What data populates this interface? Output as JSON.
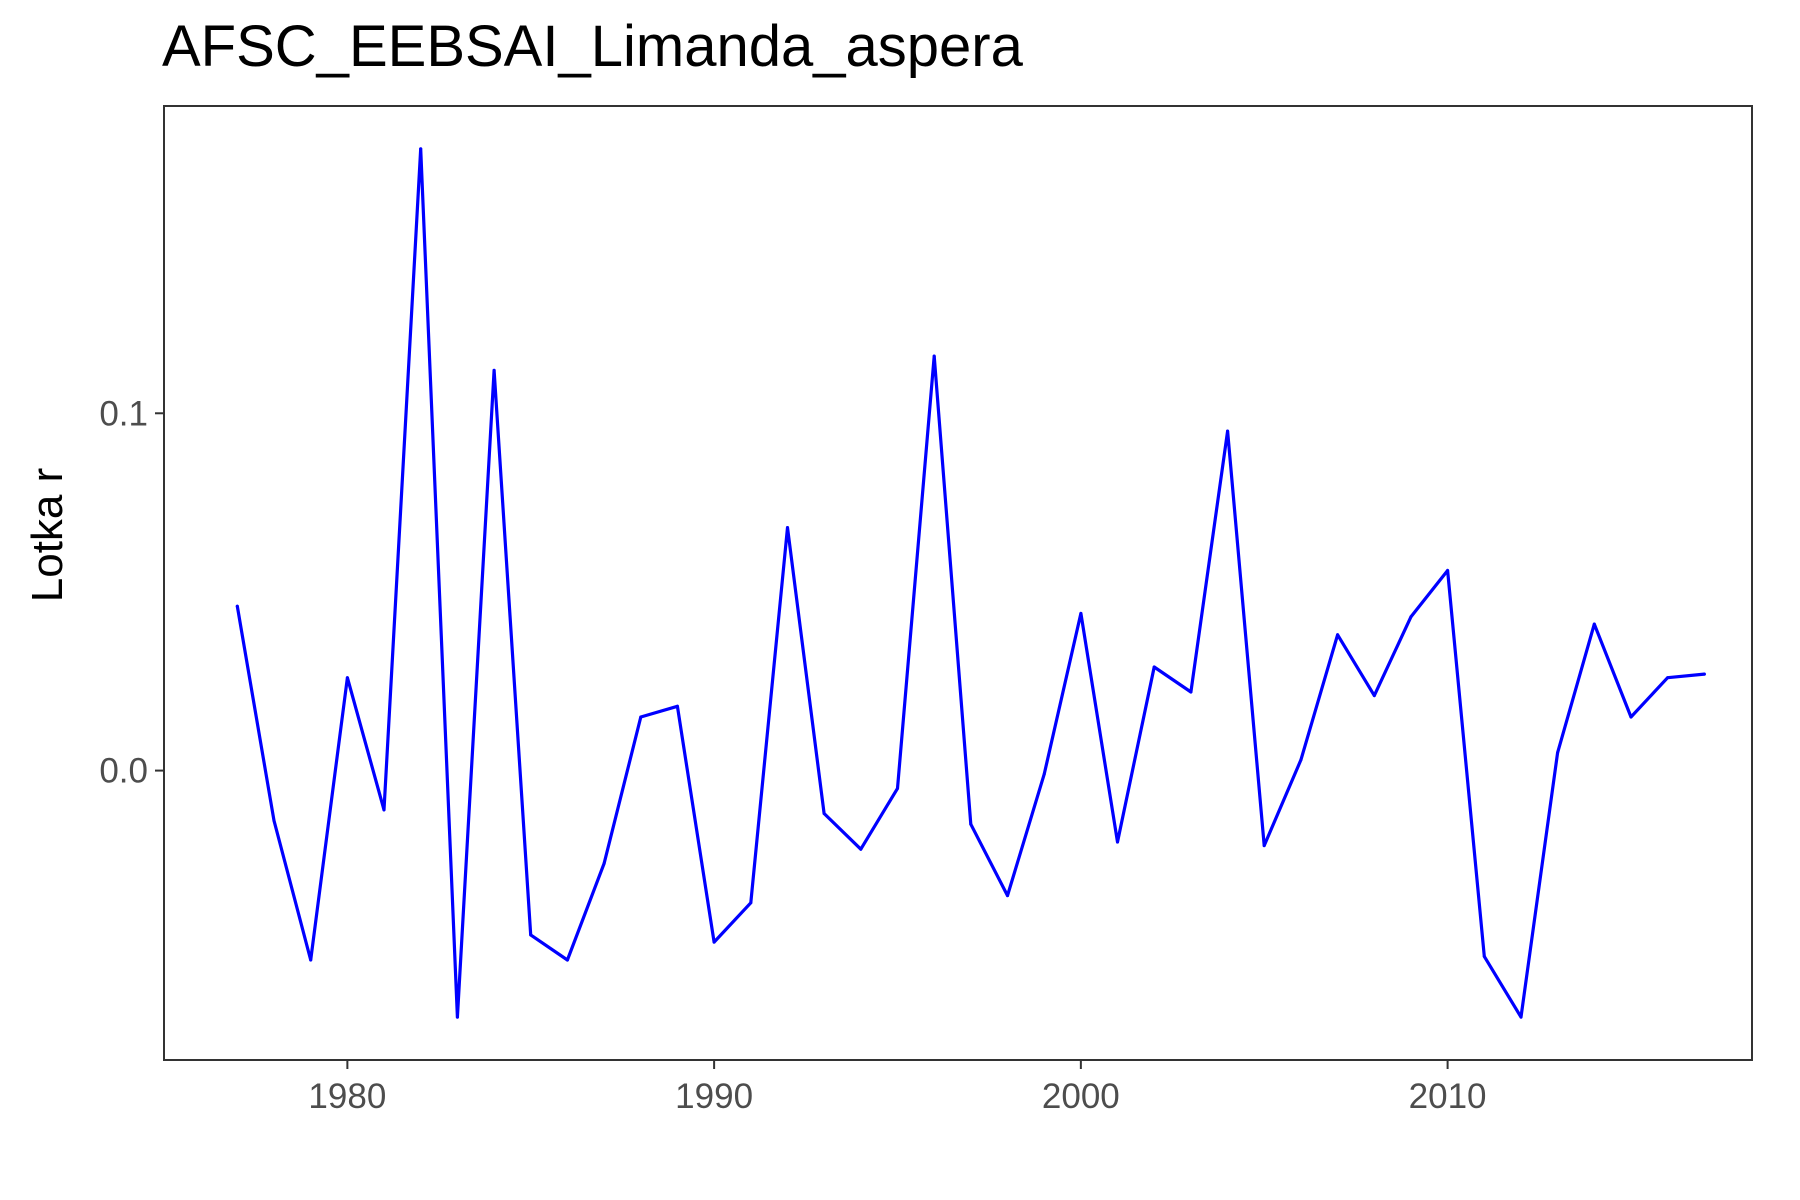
{
  "chart_data": {
    "type": "line",
    "title": "AFSC_EEBSAI_Limanda_aspera",
    "xlabel": "",
    "ylabel": "Lotka r",
    "xlim": [
      1975.0,
      2018.3
    ],
    "ylim": [
      -0.081,
      0.186
    ],
    "x_ticks": [
      1980,
      1990,
      2000,
      2010
    ],
    "x_tick_labels": [
      "1980",
      "1990",
      "2000",
      "2010"
    ],
    "y_ticks": [
      0.0,
      0.1
    ],
    "y_tick_labels": [
      "0.0",
      "0.1"
    ],
    "grid": false,
    "line_color": "#0000ff",
    "series": [
      {
        "x": [
          1977,
          1978,
          1979,
          1980,
          1981,
          1982,
          1983,
          1984,
          1985,
          1986,
          1987,
          1988,
          1989,
          1990,
          1991,
          1992,
          1993,
          1994,
          1995,
          1996,
          1997,
          1998,
          1999,
          2000,
          2001,
          2002,
          2003,
          2004,
          2005,
          2006,
          2007,
          2008,
          2009,
          2010,
          2011,
          2012,
          2013,
          2014,
          2015,
          2016,
          2017
        ],
        "values": [
          0.046,
          -0.014,
          -0.053,
          0.026,
          -0.011,
          0.174,
          -0.069,
          0.112,
          -0.046,
          -0.053,
          -0.026,
          0.015,
          0.018,
          -0.048,
          -0.037,
          0.068,
          -0.012,
          -0.022,
          -0.005,
          0.116,
          -0.015,
          -0.035,
          -0.001,
          0.044,
          -0.02,
          0.029,
          0.022,
          0.095,
          -0.021,
          0.003,
          0.038,
          0.021,
          0.043,
          0.056,
          -0.052,
          -0.069,
          0.005,
          0.041,
          0.015,
          0.026,
          0.027
        ]
      }
    ]
  }
}
